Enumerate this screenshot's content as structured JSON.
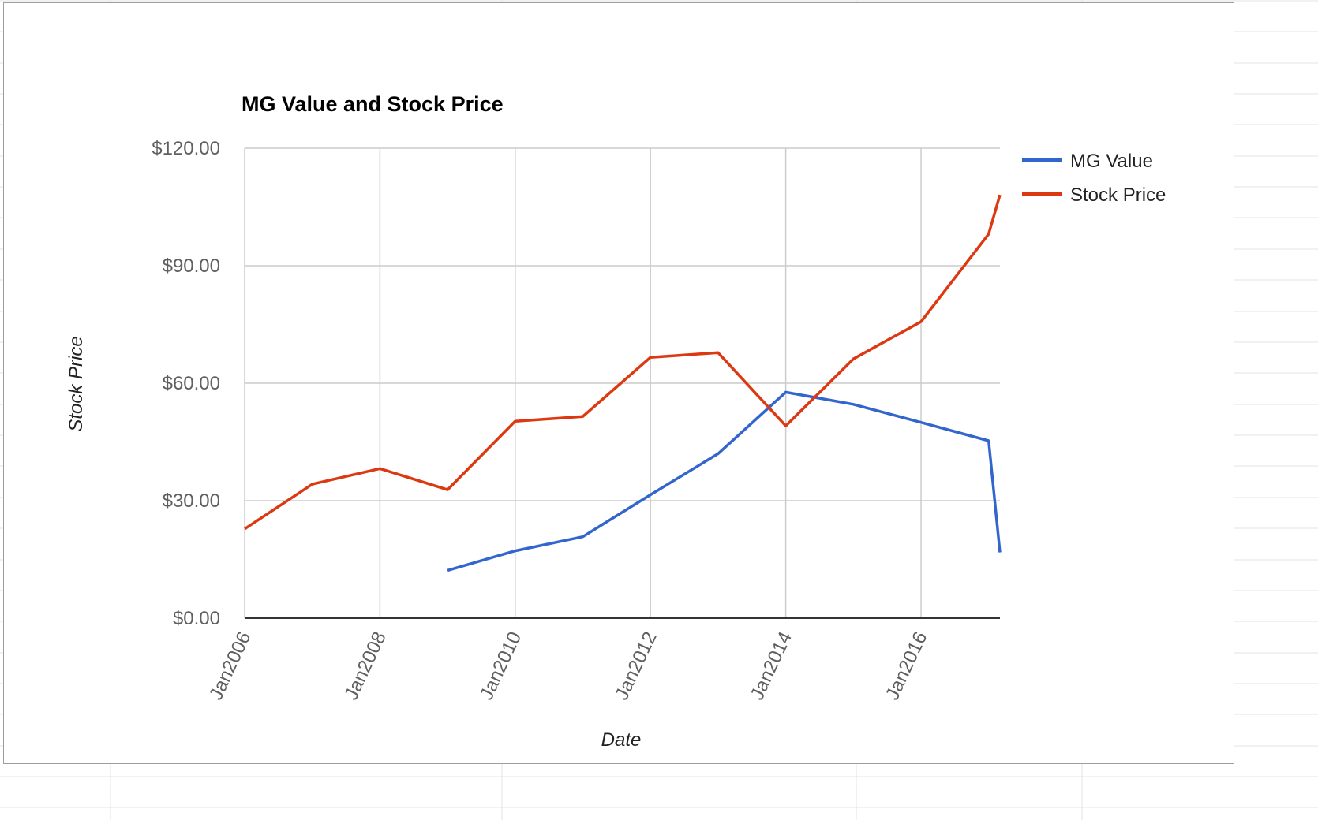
{
  "chart_data": {
    "type": "line",
    "title": "MG Value and Stock Price",
    "xlabel": "Date",
    "ylabel": "Stock Price",
    "x_ticks": [
      "Jan2006",
      "Jan2008",
      "Jan2010",
      "Jan2012",
      "Jan2014",
      "Jan2016"
    ],
    "y_ticks": [
      "$0.00",
      "$30.00",
      "$60.00",
      "$90.00",
      "$120.00"
    ],
    "xlim": [
      "2006-01",
      "2017-03"
    ],
    "ylim": [
      0,
      120
    ],
    "grid": true,
    "legend_position": "right",
    "series": [
      {
        "name": "MG Value",
        "color": "#3366cc",
        "points": [
          {
            "x": "2009-01",
            "y": 12.2
          },
          {
            "x": "2010-01",
            "y": 17.2
          },
          {
            "x": "2011-01",
            "y": 20.8
          },
          {
            "x": "2012-01",
            "y": 31.5
          },
          {
            "x": "2013-01",
            "y": 42.0
          },
          {
            "x": "2014-01",
            "y": 57.7
          },
          {
            "x": "2015-01",
            "y": 54.6
          },
          {
            "x": "2016-01",
            "y": 50.0
          },
          {
            "x": "2017-01",
            "y": 45.3
          },
          {
            "x": "2017-03",
            "y": 16.8
          }
        ]
      },
      {
        "name": "Stock Price",
        "color": "#dc3912",
        "points": [
          {
            "x": "2006-01",
            "y": 22.8
          },
          {
            "x": "2007-01",
            "y": 34.2
          },
          {
            "x": "2008-01",
            "y": 38.2
          },
          {
            "x": "2009-01",
            "y": 32.8
          },
          {
            "x": "2010-01",
            "y": 50.3
          },
          {
            "x": "2011-01",
            "y": 51.5
          },
          {
            "x": "2012-01",
            "y": 66.6
          },
          {
            "x": "2013-01",
            "y": 67.8
          },
          {
            "x": "2014-01",
            "y": 49.1
          },
          {
            "x": "2015-01",
            "y": 66.2
          },
          {
            "x": "2016-01",
            "y": 75.7
          },
          {
            "x": "2017-01",
            "y": 98.1
          },
          {
            "x": "2017-03",
            "y": 108.1
          }
        ]
      }
    ]
  }
}
